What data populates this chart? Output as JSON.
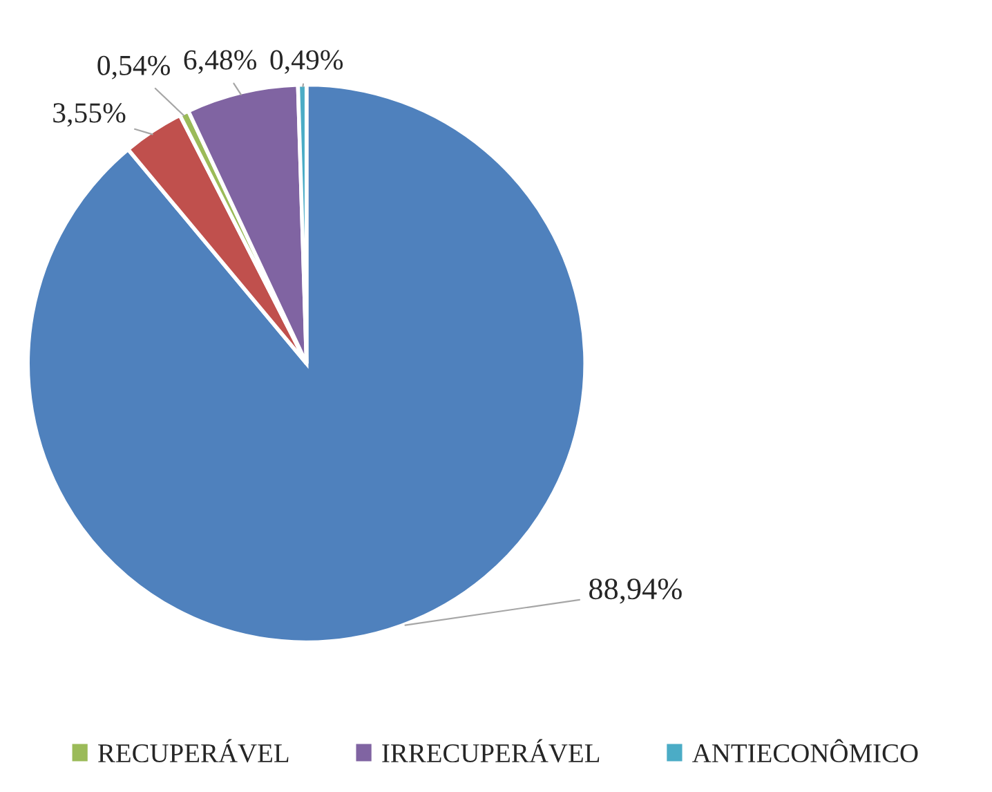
{
  "chart_data": {
    "type": "pie",
    "categories": [
      null,
      null,
      "RECUPERÁVEL",
      "IRRECUPERÁVEL",
      "ANTIECONÔMICO"
    ],
    "values": [
      88.94,
      3.55,
      0.54,
      6.48,
      0.49
    ],
    "value_labels": [
      "88,94%",
      "3,55%",
      "0,54%",
      "6,48%",
      "0,49%"
    ],
    "colors": [
      "#4f81bd",
      "#c0504d",
      "#9bbb59",
      "#8064a2",
      "#4bacc6"
    ],
    "legend": "bottom"
  }
}
